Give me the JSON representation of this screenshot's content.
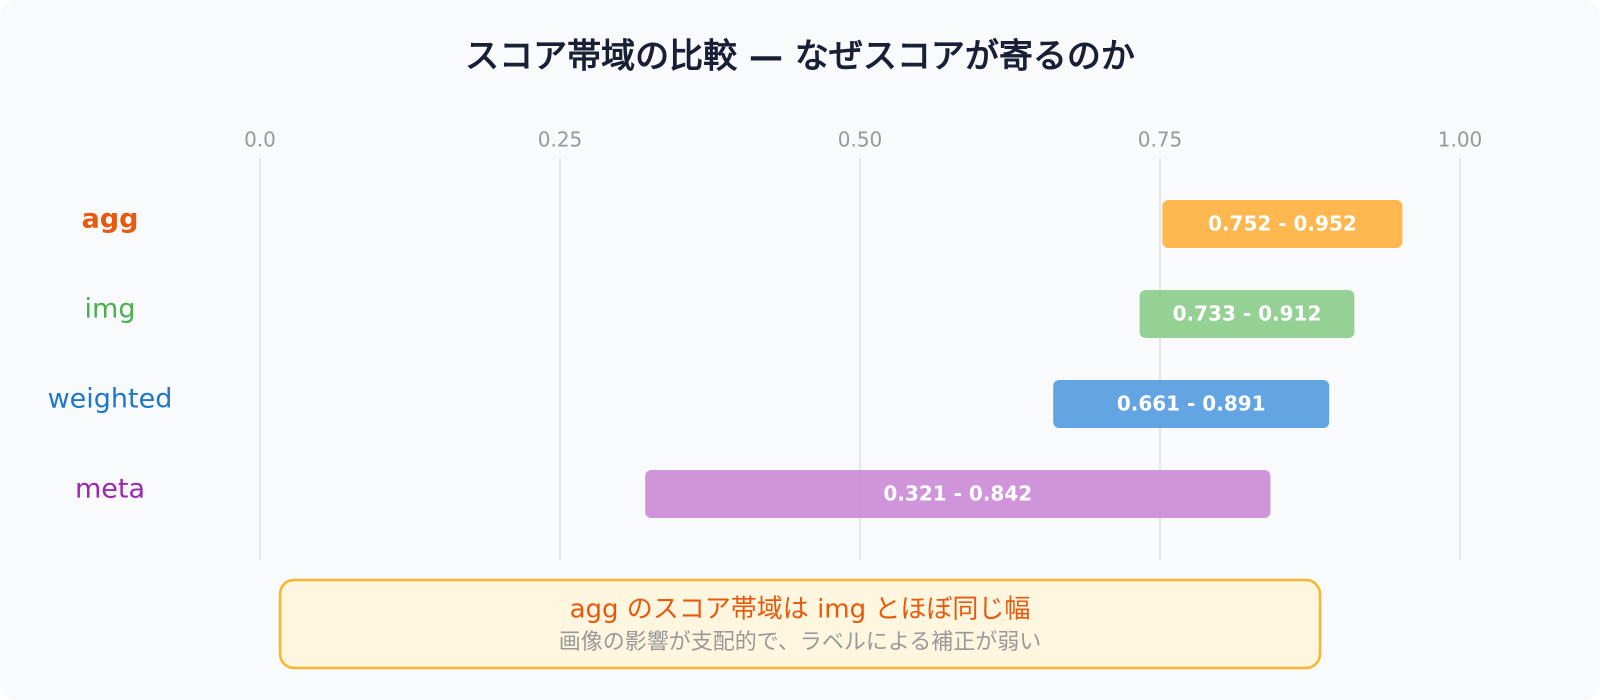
{
  "chart_data": {
    "type": "range-bar",
    "title": "スコア帯域の比較 — なぜスコアが寄るのか",
    "categories": [
      "agg",
      "img",
      "weighted",
      "meta"
    ],
    "starts": [
      0.752,
      0.733,
      0.661,
      0.321
    ],
    "ends": [
      0.952,
      0.912,
      0.891,
      0.842
    ],
    "value_labels": [
      "0.752 - 0.952",
      "0.733 - 0.912",
      "0.661 - 0.891",
      "0.321 - 0.842"
    ],
    "colors": [
      "#ffb347",
      "#8fcf8f",
      "#5b9fe0",
      "#cc8ed8"
    ],
    "label_colors": [
      "#e8590c",
      "#4caf50",
      "#1e78c8",
      "#9c27b0"
    ],
    "xlim": [
      0,
      1
    ],
    "xticks": [
      {
        "value": 0,
        "label": "0.0"
      },
      0.25,
      {
        "value": 0.5,
        "label": "0.50"
      },
      0.75,
      {
        "value": 1,
        "label": "1.00"
      }
    ],
    "grid": true,
    "annotation": {
      "title": "agg のスコア帯域は img とほぼ同じ幅",
      "text": "画像の影響が支配的で、ラベルによる補正が弱い"
    }
  }
}
